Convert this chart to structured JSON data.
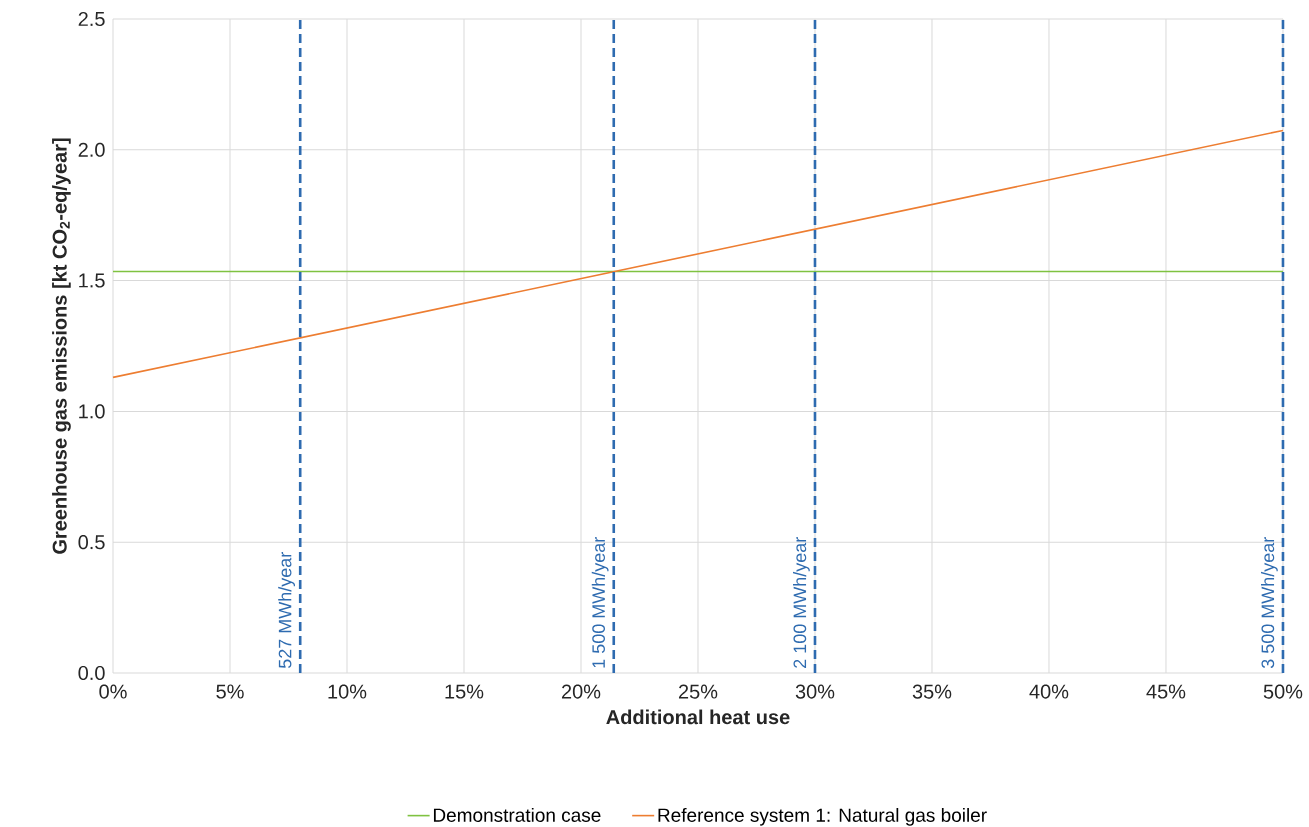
{
  "chart_data": {
    "type": "line",
    "xlabel": "Additional heat use",
    "ylabel": "Greenhouse gas emissions [kt CO$_{2}$-eq/year]",
    "x": [
      0,
      50
    ],
    "series": [
      {
        "name": "Demonstration case",
        "color": "#7fc241",
        "values": [
          1.535,
          1.535
        ]
      },
      {
        "name": "Reference system 1: Natural gas boiler",
        "color": "#ed7d31",
        "values": [
          1.13,
          2.074
        ]
      }
    ],
    "xlim": [
      0,
      50
    ],
    "xticks": [
      {
        "value": 0,
        "label": "0%"
      },
      {
        "value": 5,
        "label": "5%"
      },
      {
        "value": 10,
        "label": "10%"
      },
      {
        "value": 15,
        "label": "15%"
      },
      {
        "value": 20,
        "label": "20%"
      },
      {
        "value": 25,
        "label": "25%"
      },
      {
        "value": 30,
        "label": "30%"
      },
      {
        "value": 35,
        "label": "35%"
      },
      {
        "value": 40,
        "label": "40%"
      },
      {
        "value": 45,
        "label": "45%"
      },
      {
        "value": 50,
        "label": "50%"
      }
    ],
    "ylim": [
      0,
      2.5
    ],
    "yticks": [
      {
        "value": 0,
        "label": "0.0"
      },
      {
        "value": 0.5,
        "label": "0.5"
      },
      {
        "value": 1,
        "label": "1.0"
      },
      {
        "value": 1.5,
        "label": "1.5"
      },
      {
        "value": 2,
        "label": "2.0"
      },
      {
        "value": 2.5,
        "label": "2.5"
      }
    ],
    "ref_lines": [
      {
        "axis": "x",
        "value": 8,
        "label": "527 MWh/year",
        "color": "#2e6bb0",
        "line_style": "dashed"
      },
      {
        "axis": "x",
        "value": 21.4,
        "label": "1 500 MWh/year",
        "color": "#2e6bb0",
        "line_style": "dashed"
      },
      {
        "axis": "x",
        "value": 30,
        "label": "2 100 MWh/year",
        "color": "#2e6bb0",
        "line_style": "dashed"
      },
      {
        "axis": "x",
        "value": 50,
        "label": "3 500 MWh/year",
        "color": "#2e6bb0",
        "line_style": "dashed"
      }
    ],
    "grid": true,
    "legend": "bottom",
    "marker": "none",
    "line_style": "solid"
  }
}
